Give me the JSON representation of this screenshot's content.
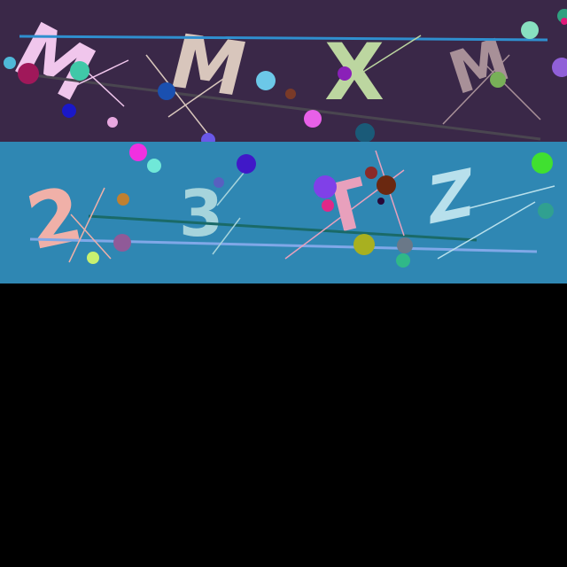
{
  "panels": [
    {
      "name": "upper-captcha-strip",
      "background": "#3a2848",
      "characters": [
        {
          "text": "M",
          "color": "#f0c6ec"
        },
        {
          "text": "M",
          "color": "#d8c6bc"
        },
        {
          "text": "X",
          "color": "#bcd6a0"
        },
        {
          "text": "M",
          "color": "#a89098"
        }
      ]
    },
    {
      "name": "lower-captcha-strip",
      "background": "#2f87b3",
      "characters": [
        {
          "text": "2",
          "color": "#f0b0a8"
        },
        {
          "text": "3",
          "color": "#a6d4dc"
        },
        {
          "text": "T",
          "color": "#e8a0bc"
        },
        {
          "text": "Z",
          "color": "#b8e0ec"
        }
      ]
    }
  ],
  "empty_area_color": "#000000"
}
